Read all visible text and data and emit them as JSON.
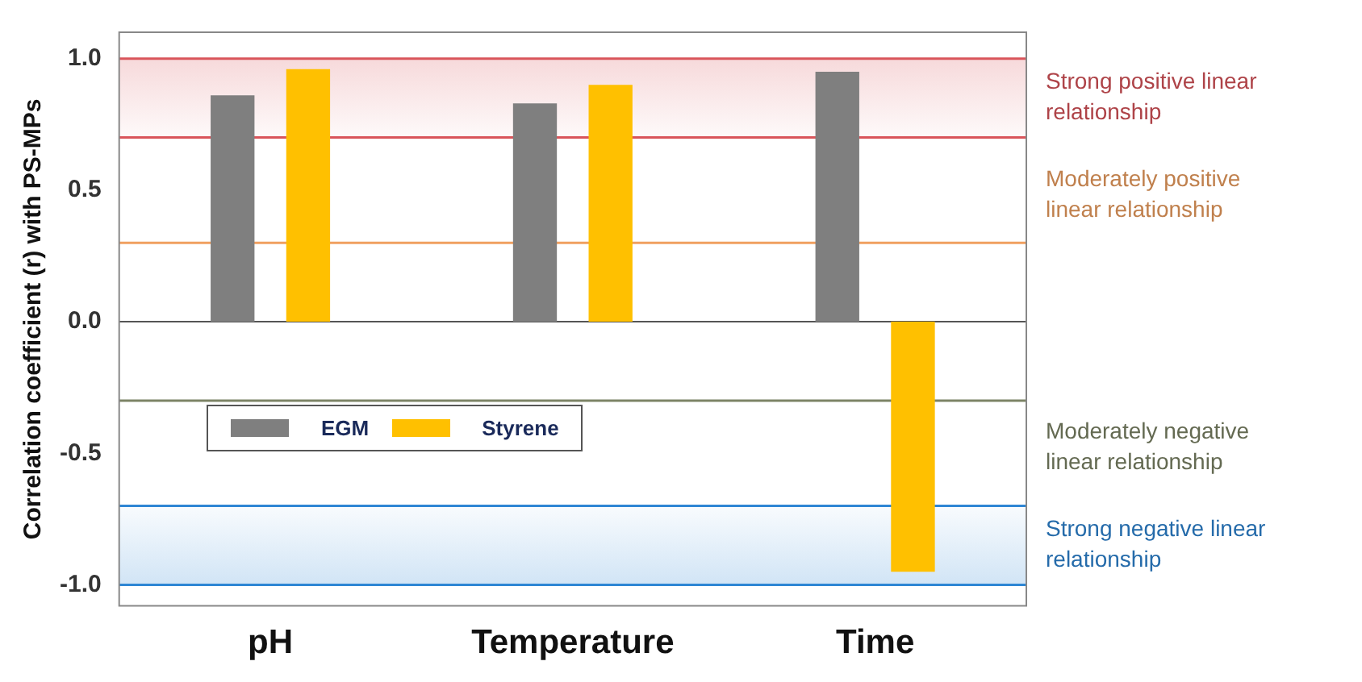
{
  "chart_data": {
    "type": "bar",
    "ylabel": "Correlation coefficient (r) with PS-MPs",
    "categories": [
      "pH",
      "Temperature",
      "Time"
    ],
    "series": [
      {
        "name": "EGM",
        "color": "#7f7f7f",
        "values": [
          0.86,
          0.83,
          0.95
        ]
      },
      {
        "name": "Styrene",
        "color": "#ffc000",
        "values": [
          0.96,
          0.9,
          -0.95
        ]
      }
    ],
    "ylim": [
      -1.08,
      1.1
    ],
    "yticks": [
      {
        "value": -1,
        "label": "-1.0"
      },
      {
        "value": -0.5,
        "label": "-0.5"
      },
      {
        "value": 0,
        "label": "0.0"
      },
      {
        "value": 0.5,
        "label": "0.5"
      },
      {
        "value": 1,
        "label": "1.0"
      }
    ],
    "bands": [
      {
        "axis": "y",
        "from": 0.7,
        "to": 1.0,
        "label": "Strong positive linear relationship",
        "color": "#d9545a"
      },
      {
        "axis": "y",
        "from": -1.0,
        "to": -0.7,
        "label": "Strong negative linear relationship",
        "color": "#2e86d4"
      }
    ],
    "ref_lines": [
      {
        "axis": "y",
        "value": 1.0,
        "color": "#d9545a"
      },
      {
        "axis": "y",
        "value": 0.7,
        "color": "#d9545a"
      },
      {
        "axis": "y",
        "value": -0.7,
        "color": "#2e86d4"
      },
      {
        "axis": "y",
        "value": -1.0,
        "color": "#2e86d4"
      },
      {
        "axis": "y",
        "value": 0.3,
        "label": "Moderately positive linear relationship",
        "color": "#f0a060"
      },
      {
        "axis": "y",
        "value": -0.3,
        "label": "Moderately negative linear relationship",
        "color": "#7d8466"
      }
    ],
    "grid": false,
    "legend": "left"
  }
}
